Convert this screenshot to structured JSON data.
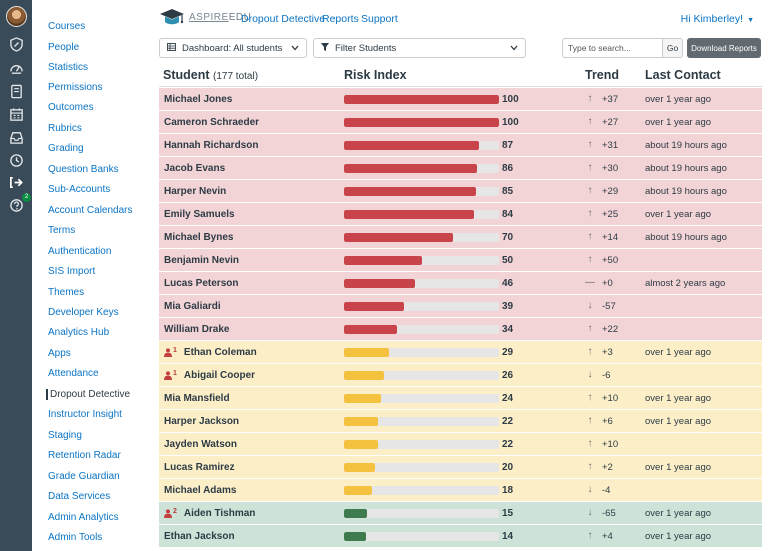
{
  "header": {
    "logo_brand": "ASPIRE",
    "logo_suffix": "EDU",
    "nav": [
      "Dropout Detective",
      "Reports",
      "Support"
    ],
    "greeting": "Hi Kimberley!"
  },
  "sidebar": {
    "items": [
      "Courses",
      "People",
      "Statistics",
      "Permissions",
      "Outcomes",
      "Rubrics",
      "Grading",
      "Question Banks",
      "Sub-Accounts",
      "Account Calendars",
      "Terms",
      "Authentication",
      "SIS Import",
      "Themes",
      "Developer Keys",
      "Analytics Hub",
      "Apps",
      "Attendance",
      "Dropout Detective",
      "Instructor Insight",
      "Staging",
      "Retention Radar",
      "Grade Guardian",
      "Data Services",
      "Admin Analytics",
      "Admin Tools"
    ],
    "active_index": 18
  },
  "rail": {
    "icons": [
      "account-icon",
      "admin-shield-icon",
      "dashboard-icon",
      "courses-icon",
      "calendar-icon",
      "inbox-icon",
      "history-icon",
      "commons-icon",
      "help-icon"
    ],
    "help_badge": "2"
  },
  "toolbar": {
    "dashboard_select": "Dashboard: All students",
    "filter_select": "Filter Students",
    "search_placeholder": "Type to search...",
    "go_label": "Go",
    "download_label": "Download Reports"
  },
  "table": {
    "headers": {
      "student": "Student",
      "count": "(177 total)",
      "risk": "Risk Index",
      "trend": "Trend",
      "contact": "Last Contact"
    },
    "rows": [
      {
        "name": "Michael Jones",
        "risk": 100,
        "trend": "+37",
        "dir": "up",
        "contact": "over 1 year ago",
        "level": "red",
        "flag": ""
      },
      {
        "name": "Cameron Schraeder",
        "risk": 100,
        "trend": "+27",
        "dir": "up",
        "contact": "over 1 year ago",
        "level": "red",
        "flag": ""
      },
      {
        "name": "Hannah Richardson",
        "risk": 87,
        "trend": "+31",
        "dir": "up",
        "contact": "about 19 hours ago",
        "level": "red",
        "flag": ""
      },
      {
        "name": "Jacob Evans",
        "risk": 86,
        "trend": "+30",
        "dir": "up",
        "contact": "about 19 hours ago",
        "level": "red",
        "flag": ""
      },
      {
        "name": "Harper Nevin",
        "risk": 85,
        "trend": "+29",
        "dir": "up",
        "contact": "about 19 hours ago",
        "level": "red",
        "flag": ""
      },
      {
        "name": "Emily Samuels",
        "risk": 84,
        "trend": "+25",
        "dir": "up",
        "contact": "over 1 year ago",
        "level": "red",
        "flag": ""
      },
      {
        "name": "Michael Bynes",
        "risk": 70,
        "trend": "+14",
        "dir": "up",
        "contact": "about 19 hours ago",
        "level": "red",
        "flag": ""
      },
      {
        "name": "Benjamin Nevin",
        "risk": 50,
        "trend": "+50",
        "dir": "up",
        "contact": "",
        "level": "red",
        "flag": ""
      },
      {
        "name": "Lucas Peterson",
        "risk": 46,
        "trend": "+0",
        "dir": "flat",
        "contact": "almost 2 years ago",
        "level": "red",
        "flag": ""
      },
      {
        "name": "Mia Galiardi",
        "risk": 39,
        "trend": "-57",
        "dir": "down",
        "contact": "",
        "level": "red",
        "flag": ""
      },
      {
        "name": "William Drake",
        "risk": 34,
        "trend": "+22",
        "dir": "up",
        "contact": "",
        "level": "red",
        "flag": ""
      },
      {
        "name": "Ethan Coleman",
        "risk": 29,
        "trend": "+3",
        "dir": "up",
        "contact": "over 1 year ago",
        "level": "yellow",
        "flag": "1"
      },
      {
        "name": "Abigail Cooper",
        "risk": 26,
        "trend": "-6",
        "dir": "down",
        "contact": "",
        "level": "yellow",
        "flag": "1"
      },
      {
        "name": "Mia Mansfield",
        "risk": 24,
        "trend": "+10",
        "dir": "up",
        "contact": "over 1 year ago",
        "level": "yellow",
        "flag": ""
      },
      {
        "name": "Harper Jackson",
        "risk": 22,
        "trend": "+6",
        "dir": "up",
        "contact": "over 1 year ago",
        "level": "yellow",
        "flag": ""
      },
      {
        "name": "Jayden Watson",
        "risk": 22,
        "trend": "+10",
        "dir": "up",
        "contact": "",
        "level": "yellow",
        "flag": ""
      },
      {
        "name": "Lucas Ramirez",
        "risk": 20,
        "trend": "+2",
        "dir": "up",
        "contact": "over 1 year ago",
        "level": "yellow",
        "flag": ""
      },
      {
        "name": "Michael Adams",
        "risk": 18,
        "trend": "-4",
        "dir": "down",
        "contact": "",
        "level": "yellow",
        "flag": ""
      },
      {
        "name": "Aiden Tishman",
        "risk": 15,
        "trend": "-65",
        "dir": "down",
        "contact": "over 1 year ago",
        "level": "green",
        "flag": "2"
      },
      {
        "name": "Ethan Jackson",
        "risk": 14,
        "trend": "+4",
        "dir": "up",
        "contact": "over 1 year ago",
        "level": "green",
        "flag": ""
      }
    ]
  }
}
